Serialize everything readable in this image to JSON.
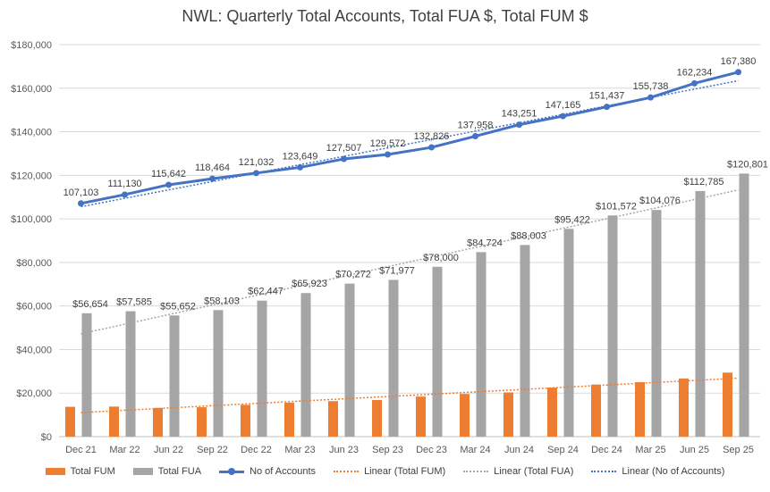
{
  "chart_data": {
    "type": "bar",
    "title": "NWL: Quarterly Total Accounts, Total FUA $, Total FUM $",
    "categories": [
      "Dec 21",
      "Mar 22",
      "Jun 22",
      "Sep 22",
      "Dec 22",
      "Mar 23",
      "Jun 23",
      "Sep 23",
      "Dec 23",
      "Mar 24",
      "Jun 24",
      "Sep 24",
      "Dec 24",
      "Mar 25",
      "Jun 25",
      "Sep 25"
    ],
    "ylim": [
      0,
      180000
    ],
    "yticks": [
      "$0",
      "$20,000",
      "$40,000",
      "$60,000",
      "$80,000",
      "$100,000",
      "$120,000",
      "$140,000",
      "$160,000",
      "$180,000"
    ],
    "grid": true,
    "legend_position": "bottom",
    "colors": {
      "fum": "#ED7D31",
      "fua": "#A5A5A5",
      "accounts": "#4472C4"
    },
    "series": [
      {
        "name": "Total FUM",
        "kind": "bar",
        "values": [
          13700,
          13800,
          13200,
          13500,
          14600,
          15600,
          16300,
          16800,
          18400,
          19600,
          20300,
          22500,
          23900,
          25000,
          26700,
          29400
        ]
      },
      {
        "name": "Total FUA",
        "kind": "bar",
        "values": [
          56654,
          57585,
          55652,
          58103,
          62447,
          65923,
          70272,
          71977,
          78000,
          84724,
          88003,
          95422,
          101572,
          104076,
          112785,
          120801
        ],
        "labels": [
          "$56,654",
          "$57,585",
          "$55,652",
          "$58,103",
          "$62,447",
          "$65,923",
          "$70,272",
          "$71,977",
          "$78,000",
          "$84,724",
          "$88,003",
          "$95,422",
          "$101,572",
          "$104,076",
          "$112,785",
          "$120,801"
        ]
      },
      {
        "name": "No of Accounts",
        "kind": "line",
        "values": [
          107103,
          111130,
          115642,
          118464,
          121032,
          123649,
          127507,
          129572,
          132826,
          137958,
          143251,
          147165,
          151437,
          155738,
          162234,
          167380
        ],
        "labels": [
          "107,103",
          "111,130",
          "115,642",
          "118,464",
          "121,032",
          "123,649",
          "127,507",
          "129,572",
          "132,826",
          "137,958",
          "143,251",
          "147,165",
          "151,437",
          "155,738",
          "162,234",
          "167,380"
        ]
      },
      {
        "name": "Linear (Total FUM)",
        "kind": "trend",
        "of": "Total FUM"
      },
      {
        "name": "Linear (Total FUA)",
        "kind": "trend",
        "of": "Total FUA"
      },
      {
        "name": "Linear (No of Accounts)",
        "kind": "trend",
        "of": "No of Accounts"
      }
    ]
  }
}
